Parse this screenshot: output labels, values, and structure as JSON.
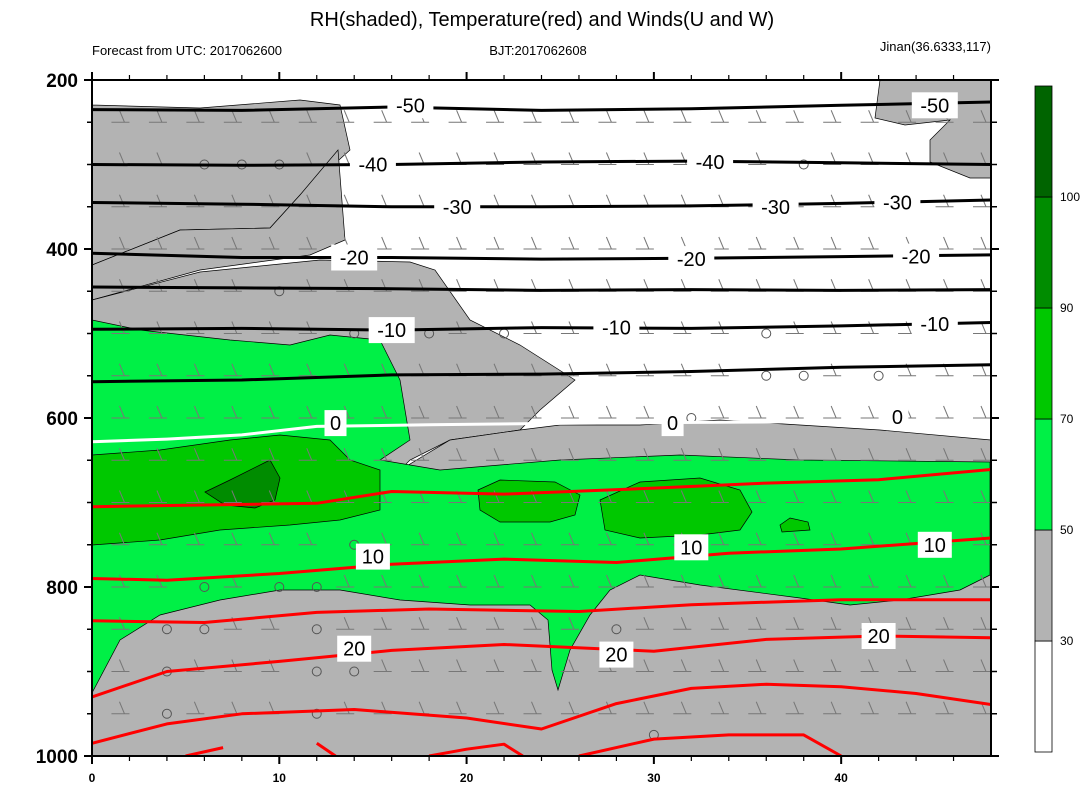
{
  "chart_data": {
    "type": "contour",
    "title": "RH(shaded), Temperature(red) and Winds(U and W)",
    "subtitle_left": "Forecast from UTC: 2017062600",
    "subtitle_center": "BJT:2017062608",
    "subtitle_right": "Jinan(36.6333,117)",
    "x_axis": {
      "range": [
        0,
        48
      ],
      "ticks": [
        0,
        10,
        20,
        30,
        40
      ],
      "tick_labels": [
        "0",
        "10",
        "20",
        "30",
        "40"
      ]
    },
    "y_axis": {
      "range": [
        200,
        1000
      ],
      "reversed": true,
      "ticks": [
        200,
        400,
        600,
        800,
        1000
      ],
      "tick_labels": [
        "200",
        "400",
        "600",
        "800",
        "1000"
      ]
    },
    "colorbar": {
      "levels": [
        30,
        50,
        70,
        90,
        100
      ],
      "tick_labels": [
        "30",
        "50",
        "70",
        "90",
        "100"
      ],
      "colors": [
        "#ffffff",
        "#b3b3b3",
        "#00f046",
        "#00c800",
        "#008c00",
        "#006400"
      ]
    },
    "temperature_contour_labels": [
      "-50",
      "-50",
      "-40",
      "-40",
      "-30",
      "-30",
      "-30",
      "-20",
      "-20",
      "-20",
      "-10",
      "-10",
      "-10",
      "0",
      "0",
      "0",
      "10",
      "10",
      "10",
      "20",
      "20",
      "20"
    ],
    "temperature_label_positions": [
      {
        "text": "-50",
        "x": 17,
        "p": 230
      },
      {
        "text": "-50",
        "x": 45,
        "p": 230
      },
      {
        "text": "-40",
        "x": 15,
        "p": 300
      },
      {
        "text": "-40",
        "x": 33,
        "p": 297
      },
      {
        "text": "-30",
        "x": 19.5,
        "p": 350
      },
      {
        "text": "-30",
        "x": 36.5,
        "p": 350
      },
      {
        "text": "-30",
        "x": 43,
        "p": 345
      },
      {
        "text": "-20",
        "x": 14,
        "p": 410
      },
      {
        "text": "-20",
        "x": 32,
        "p": 412
      },
      {
        "text": "-20",
        "x": 44,
        "p": 409
      },
      {
        "text": "-10",
        "x": 16,
        "p": 496
      },
      {
        "text": "-10",
        "x": 28,
        "p": 493
      },
      {
        "text": "-10",
        "x": 45,
        "p": 489
      },
      {
        "text": "0",
        "x": 13,
        "p": 606
      },
      {
        "text": "0",
        "x": 31,
        "p": 606
      },
      {
        "text": "0",
        "x": 43,
        "p": 599
      },
      {
        "text": "10",
        "x": 15,
        "p": 764
      },
      {
        "text": "10",
        "x": 32,
        "p": 753
      },
      {
        "text": "10",
        "x": 45,
        "p": 750
      },
      {
        "text": "20",
        "x": 14,
        "p": 873
      },
      {
        "text": "20",
        "x": 28,
        "p": 880
      },
      {
        "text": "20",
        "x": 42,
        "p": 858
      }
    ]
  }
}
